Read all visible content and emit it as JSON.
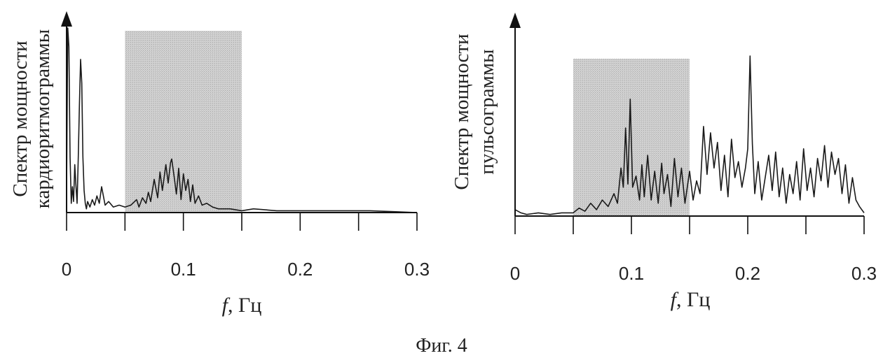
{
  "figure": {
    "caption": "Фиг. 4"
  },
  "chart_data": [
    {
      "type": "line",
      "ylabel": [
        "Спектр мощности",
        "кардиоритмограммы"
      ],
      "xlabel_var": "f",
      "xlabel_unit": ", Гц",
      "xlim": [
        0,
        0.3
      ],
      "ylim": [
        0,
        1
      ],
      "xticks": [
        0,
        0.05,
        0.1,
        0.15,
        0.2,
        0.25,
        0.3
      ],
      "xtick_labels": [
        {
          "value": 0,
          "label": "0"
        },
        {
          "value": 0.1,
          "label": "0.1"
        },
        {
          "value": 0.2,
          "label": "0.2"
        },
        {
          "value": 0.3,
          "label": "0.3"
        }
      ],
      "highlight_band": [
        0.05,
        0.15
      ],
      "grid": false,
      "series": [
        {
          "x": [
            0,
            0.001,
            0.002,
            0.003,
            0.004,
            0.005,
            0.006,
            0.007,
            0.008,
            0.009,
            0.01,
            0.011,
            0.012,
            0.013,
            0.014,
            0.015,
            0.016,
            0.017,
            0.018,
            0.02,
            0.022,
            0.024,
            0.026,
            0.028,
            0.03,
            0.033,
            0.036,
            0.04,
            0.045,
            0.05,
            0.055,
            0.06,
            0.062,
            0.065,
            0.068,
            0.07,
            0.072,
            0.075,
            0.078,
            0.08,
            0.082,
            0.085,
            0.087,
            0.089,
            0.09,
            0.092,
            0.094,
            0.096,
            0.098,
            0.1,
            0.102,
            0.104,
            0.106,
            0.108,
            0.11,
            0.113,
            0.116,
            0.12,
            0.125,
            0.13,
            0.14,
            0.15,
            0.16,
            0.18,
            0.2,
            0.22,
            0.24,
            0.26,
            0.28,
            0.3
          ],
          "y": [
            0.12,
            1.0,
            0.9,
            0.3,
            0.05,
            0.14,
            0.06,
            0.26,
            0.15,
            0.05,
            0.3,
            0.58,
            0.83,
            0.7,
            0.3,
            0.12,
            0.05,
            0.02,
            0.06,
            0.03,
            0.07,
            0.04,
            0.09,
            0.05,
            0.14,
            0.04,
            0.06,
            0.03,
            0.04,
            0.03,
            0.04,
            0.07,
            0.03,
            0.08,
            0.05,
            0.11,
            0.06,
            0.18,
            0.08,
            0.22,
            0.12,
            0.26,
            0.16,
            0.27,
            0.29,
            0.2,
            0.1,
            0.24,
            0.07,
            0.21,
            0.12,
            0.18,
            0.06,
            0.15,
            0.05,
            0.09,
            0.04,
            0.05,
            0.03,
            0.02,
            0.02,
            0.01,
            0.02,
            0.01,
            0.01,
            0.01,
            0.01,
            0.01,
            0.005,
            0.0
          ]
        }
      ]
    },
    {
      "type": "line",
      "ylabel": [
        "Спектр мощности",
        "пульсограммы"
      ],
      "xlabel_var": "f",
      "xlabel_unit": ", Гц",
      "xlim": [
        0,
        0.3
      ],
      "ylim": [
        0,
        1
      ],
      "xticks": [
        0,
        0.05,
        0.1,
        0.15,
        0.2,
        0.25,
        0.3
      ],
      "xtick_labels": [
        {
          "value": 0,
          "label": "0"
        },
        {
          "value": 0.1,
          "label": "0.1"
        },
        {
          "value": 0.2,
          "label": "0.2"
        },
        {
          "value": 0.3,
          "label": "0.3"
        }
      ],
      "highlight_band": [
        0.05,
        0.15
      ],
      "grid": false,
      "series": [
        {
          "x": [
            0,
            0.005,
            0.01,
            0.02,
            0.03,
            0.04,
            0.05,
            0.055,
            0.06,
            0.065,
            0.07,
            0.075,
            0.08,
            0.085,
            0.088,
            0.091,
            0.093,
            0.095,
            0.097,
            0.099,
            0.101,
            0.104,
            0.107,
            0.109,
            0.111,
            0.114,
            0.117,
            0.12,
            0.123,
            0.126,
            0.128,
            0.131,
            0.134,
            0.137,
            0.14,
            0.143,
            0.146,
            0.15,
            0.153,
            0.156,
            0.159,
            0.162,
            0.165,
            0.168,
            0.171,
            0.174,
            0.177,
            0.18,
            0.183,
            0.186,
            0.189,
            0.192,
            0.195,
            0.198,
            0.2,
            0.202,
            0.204,
            0.206,
            0.209,
            0.212,
            0.215,
            0.218,
            0.221,
            0.224,
            0.227,
            0.23,
            0.233,
            0.236,
            0.239,
            0.242,
            0.245,
            0.248,
            0.251,
            0.254,
            0.257,
            0.26,
            0.263,
            0.266,
            0.269,
            0.272,
            0.275,
            0.278,
            0.281,
            0.284,
            0.287,
            0.29,
            0.293,
            0.296,
            0.3
          ],
          "y": [
            0.04,
            0.02,
            0.01,
            0.02,
            0.01,
            0.02,
            0.02,
            0.05,
            0.03,
            0.08,
            0.04,
            0.1,
            0.06,
            0.14,
            0.08,
            0.3,
            0.18,
            0.55,
            0.2,
            0.73,
            0.18,
            0.25,
            0.1,
            0.32,
            0.12,
            0.38,
            0.1,
            0.28,
            0.08,
            0.33,
            0.14,
            0.26,
            0.06,
            0.36,
            0.12,
            0.3,
            0.08,
            0.28,
            0.1,
            0.22,
            0.14,
            0.56,
            0.26,
            0.52,
            0.3,
            0.46,
            0.16,
            0.38,
            0.12,
            0.48,
            0.24,
            0.34,
            0.18,
            0.3,
            0.42,
            1.0,
            0.45,
            0.14,
            0.34,
            0.1,
            0.24,
            0.38,
            0.16,
            0.4,
            0.12,
            0.3,
            0.08,
            0.26,
            0.14,
            0.34,
            0.1,
            0.42,
            0.16,
            0.3,
            0.12,
            0.36,
            0.22,
            0.44,
            0.18,
            0.4,
            0.26,
            0.36,
            0.14,
            0.32,
            0.08,
            0.24,
            0.1,
            0.06,
            0.02
          ]
        }
      ]
    }
  ]
}
